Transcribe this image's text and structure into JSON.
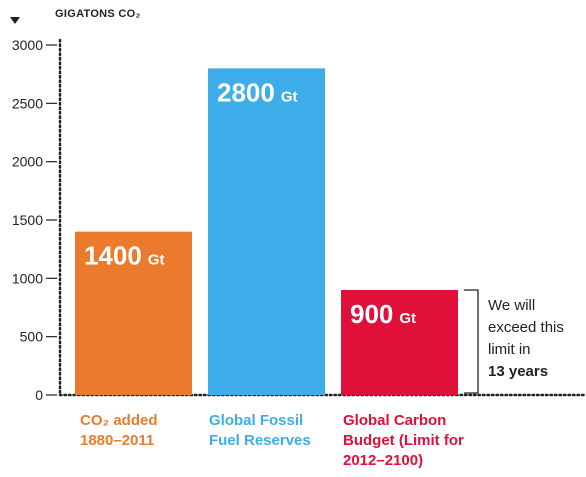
{
  "chart_data": {
    "type": "bar",
    "ylabel": "GIGATONS CO₂",
    "ylim": [
      0,
      3000
    ],
    "yticks": [
      "0",
      "500",
      "1000",
      "1500",
      "2000",
      "2500",
      "3000"
    ],
    "grid": false,
    "categories": [
      "CO₂ added 1880–2011",
      "Global Fossil Fuel Reserves",
      "Global Carbon Budget (Limit for 2012–2100)"
    ],
    "values": [
      1400,
      2800,
      900
    ],
    "data_labels": [
      {
        "num": "1400",
        "unit": "Gt"
      },
      {
        "num": "2800",
        "unit": "Gt"
      },
      {
        "num": "900",
        "unit": "Gt"
      }
    ],
    "colors": [
      "#ec7a2e",
      "#3daee9",
      "#e0103a"
    ],
    "category_lines": [
      [
        "CO₂ added",
        "1880–2011"
      ],
      [
        "Global Fossil",
        "Fuel Reserves"
      ],
      [
        "Global Carbon",
        "Budget (Limit for",
        "2012–2100)"
      ]
    ],
    "annotation": {
      "text": "We will exceed this limit in",
      "bold": "13 years",
      "lines": [
        "We will",
        "exceed this",
        "limit in"
      ]
    }
  }
}
